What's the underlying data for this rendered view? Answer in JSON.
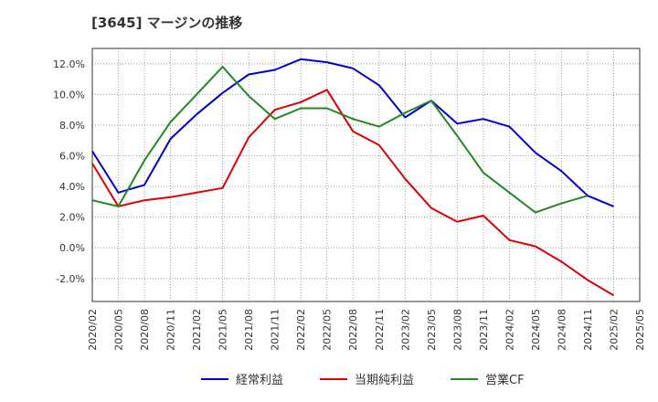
{
  "chart_data": {
    "type": "line",
    "title": "[3645]  マージンの推移",
    "x": [
      "2020/02",
      "2020/05",
      "2020/08",
      "2020/11",
      "2021/02",
      "2021/05",
      "2021/08",
      "2021/11",
      "2022/02",
      "2022/05",
      "2022/08",
      "2022/11",
      "2023/02",
      "2023/05",
      "2023/08",
      "2023/11",
      "2024/02",
      "2024/05",
      "2024/08",
      "2024/11",
      "2025/02",
      "2025/05"
    ],
    "ylim": [
      -3.5,
      13.0
    ],
    "yticks": [
      -2.0,
      0.0,
      2.0,
      4.0,
      6.0,
      8.0,
      10.0,
      12.0
    ],
    "ytick_labels": [
      "-2.0%",
      "0.0%",
      "2.0%",
      "4.0%",
      "6.0%",
      "8.0%",
      "10.0%",
      "12.0%"
    ],
    "grid": true,
    "legend_position": "bottom",
    "series": [
      {
        "name": "経常利益",
        "color": "#0000cc",
        "values": [
          6.3,
          3.6,
          4.1,
          7.1,
          8.7,
          10.1,
          11.3,
          11.6,
          12.3,
          12.1,
          11.7,
          10.6,
          8.5,
          9.6,
          8.1,
          8.4,
          7.9,
          6.2,
          5.0,
          3.4,
          2.7,
          null
        ]
      },
      {
        "name": "当期純利益",
        "color": "#dd0000",
        "values": [
          5.5,
          2.7,
          3.1,
          3.3,
          3.6,
          3.9,
          7.2,
          9.0,
          9.5,
          10.3,
          7.6,
          6.7,
          4.5,
          2.6,
          1.7,
          2.1,
          0.5,
          0.1,
          -0.9,
          -2.1,
          -3.1,
          null
        ]
      },
      {
        "name": "営業CF",
        "color": "#228822",
        "values": [
          3.1,
          2.7,
          5.7,
          8.2,
          10.0,
          11.8,
          9.9,
          8.4,
          9.1,
          9.1,
          8.4,
          7.9,
          8.8,
          9.6,
          7.3,
          4.9,
          3.6,
          2.3,
          2.9,
          3.4,
          null,
          null
        ]
      }
    ]
  }
}
